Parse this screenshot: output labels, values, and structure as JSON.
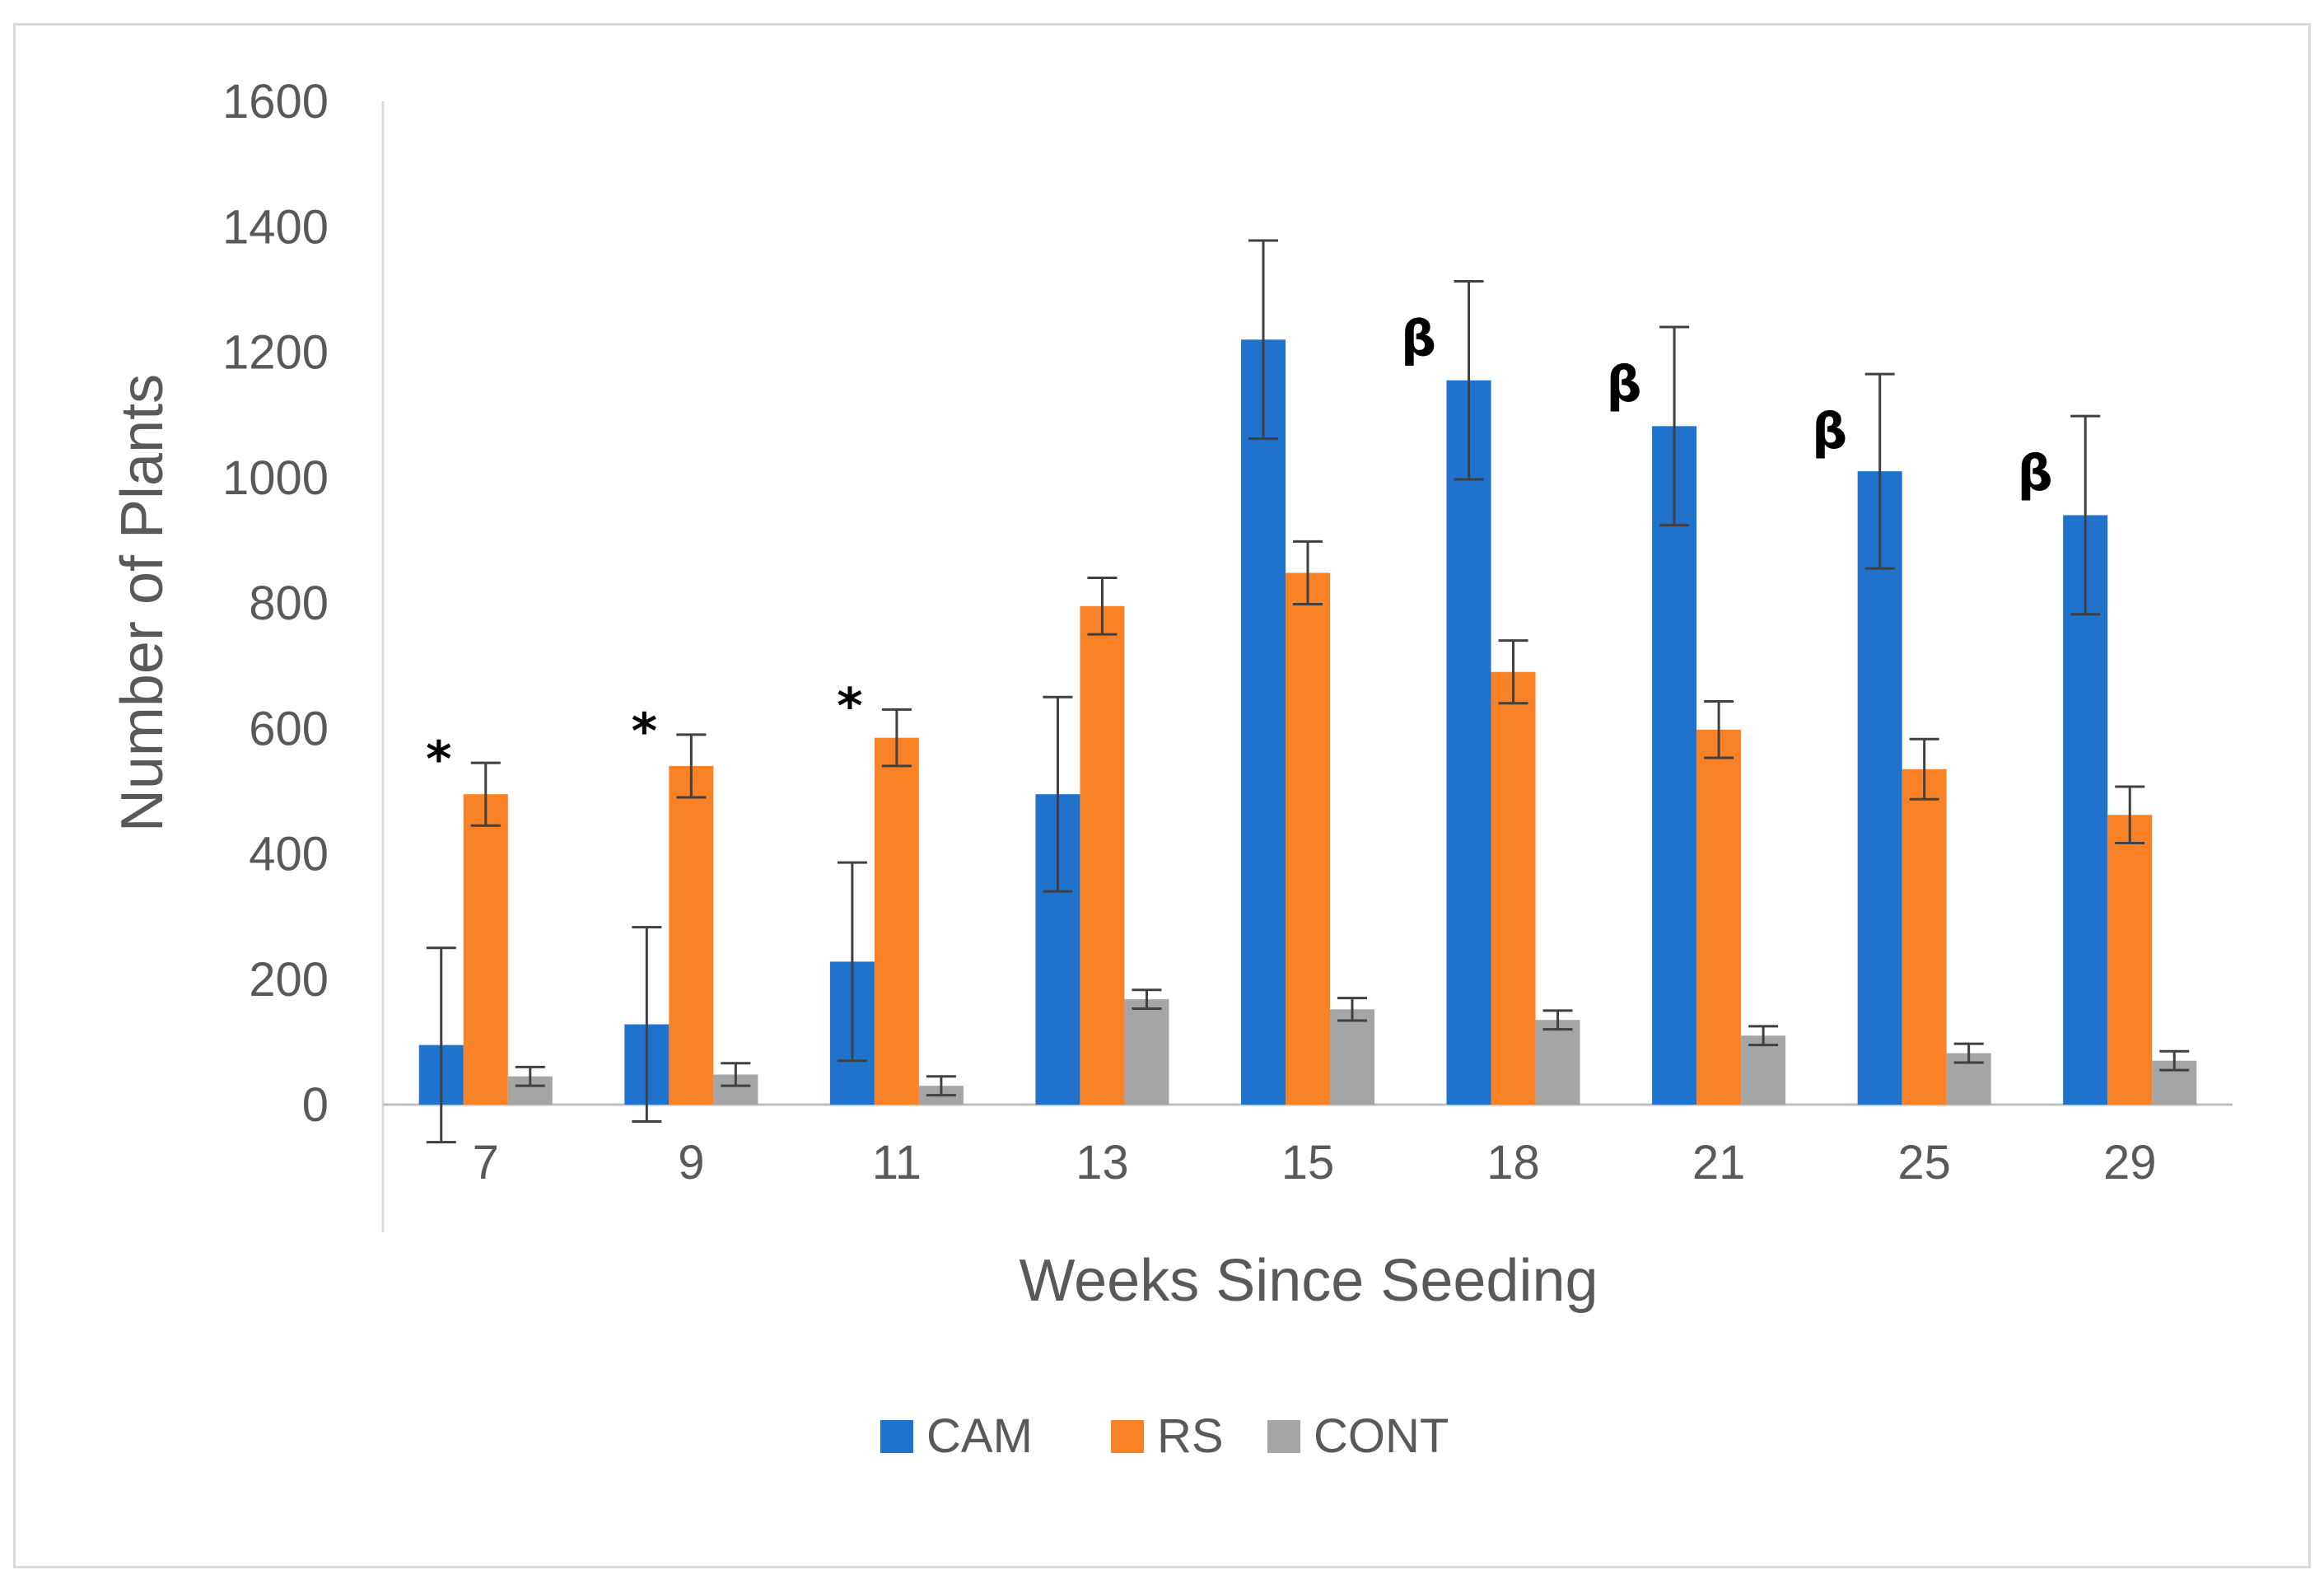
{
  "chart_data": {
    "type": "bar",
    "title": "",
    "xlabel": "Weeks Since Seeding",
    "ylabel": "Number of Plants",
    "ylim": [
      0,
      1600
    ],
    "yticks": [
      0,
      200,
      400,
      600,
      800,
      1000,
      1200,
      1400,
      1600
    ],
    "grid": false,
    "legend_position": "bottom",
    "categories": [
      "7",
      "9",
      "11",
      "13",
      "15",
      "18",
      "21",
      "25",
      "29"
    ],
    "series": [
      {
        "name": "CAM",
        "color": "#1f73cd",
        "values": [
          95,
          128,
          228,
          495,
          1220,
          1155,
          1082,
          1010,
          940
        ],
        "errors": [
          155,
          155,
          158,
          155,
          158,
          158,
          158,
          155,
          158
        ]
      },
      {
        "name": "RS",
        "color": "#f98227",
        "values": [
          495,
          540,
          585,
          795,
          848,
          690,
          598,
          535,
          462
        ],
        "errors": [
          50,
          50,
          45,
          45,
          50,
          50,
          45,
          48,
          45
        ]
      },
      {
        "name": "CONT",
        "color": "#a5a5a5",
        "values": [
          45,
          48,
          30,
          168,
          152,
          135,
          110,
          82,
          70
        ],
        "errors": [
          15,
          18,
          15,
          15,
          18,
          15,
          15,
          15,
          15
        ]
      }
    ],
    "annotations": [
      {
        "category": "7",
        "series": "RS",
        "label": "*"
      },
      {
        "category": "9",
        "series": "RS",
        "label": "*"
      },
      {
        "category": "11",
        "series": "RS",
        "label": "*"
      },
      {
        "category": "18",
        "series": "CAM",
        "label": "β"
      },
      {
        "category": "21",
        "series": "CAM",
        "label": "β"
      },
      {
        "category": "25",
        "series": "CAM",
        "label": "β"
      },
      {
        "category": "29",
        "series": "CAM",
        "label": "β"
      }
    ]
  }
}
